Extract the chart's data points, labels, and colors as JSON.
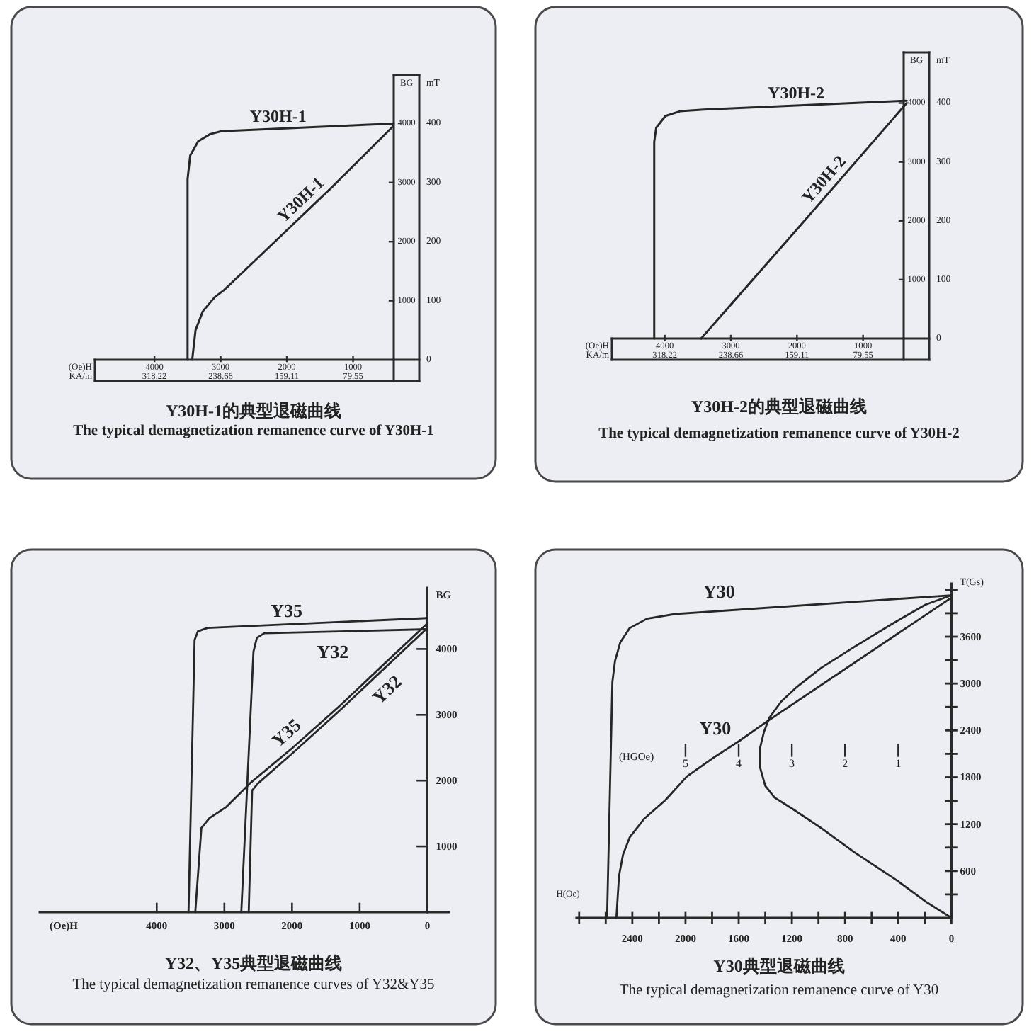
{
  "chart_data": [
    {
      "type": "line",
      "title": "Y30H-1的典型退磁曲线",
      "subtitle": "The typical demagnetization remanence curve of Y30H-1",
      "xlabel": "(Oe)H",
      "x2label": "KA/m",
      "ylabel": "BG",
      "y2label": "mT",
      "xlim": [
        4900,
        0
      ],
      "xticks": [
        4000,
        3000,
        2000,
        1000
      ],
      "x2lim": [
        389.8,
        0
      ],
      "x2ticks": [
        318.22,
        238.66,
        159.11,
        79.55
      ],
      "ylim": [
        0,
        4820
      ],
      "yticks": [
        1000,
        2000,
        3000,
        4000
      ],
      "y2lim": [
        0,
        482
      ],
      "y2ticks": [
        0,
        100,
        200,
        300,
        400
      ],
      "series": [
        {
          "name": "Y30H-1",
          "color": "#262626",
          "x": [
            3500,
            3500,
            3460,
            3340,
            3160,
            2990,
            390
          ],
          "values": [
            0,
            3060,
            3460,
            3700,
            3820,
            3870,
            4000
          ]
        },
        {
          "name": "Y30H-1",
          "color": "#262626",
          "x": [
            3430,
            3380,
            3270,
            3090,
            2950,
            2490,
            1340,
            390
          ],
          "values": [
            0,
            500,
            820,
            1060,
            1180,
            1670,
            2900,
            3960
          ]
        }
      ]
    },
    {
      "type": "line",
      "title": "Y30H-2的典型退磁曲线",
      "subtitle": "The typical demagnetization remanence curve of Y30H-2",
      "xlabel": "(Oe)H",
      "x2label": "KA/m",
      "ylabel": "BG",
      "y2label": "mT",
      "xlim": [
        4800,
        0
      ],
      "xticks": [
        4000,
        3000,
        2000,
        1000
      ],
      "x2lim": [
        381.9,
        0
      ],
      "x2ticks": [
        318.22,
        238.66,
        159.11,
        79.55
      ],
      "ylim": [
        0,
        4860
      ],
      "yticks": [
        1000,
        2000,
        3000,
        4000
      ],
      "y2lim": [
        0,
        486
      ],
      "y2ticks": [
        0,
        100,
        200,
        300,
        400
      ],
      "series": [
        {
          "name": "Y30H-2",
          "color": "#262626",
          "x": [
            4160,
            4160,
            4130,
            3990,
            3770,
            3410,
            340
          ],
          "values": [
            0,
            3340,
            3580,
            3780,
            3860,
            3890,
            4040
          ]
        },
        {
          "name": "Y30H-2",
          "color": "#262626",
          "x": [
            3450,
            1840,
            340
          ],
          "values": [
            0,
            2060,
            4000
          ]
        }
      ]
    },
    {
      "type": "line",
      "title": "Y32、Y35典型退磁曲线",
      "subtitle": "The typical demagnetization remanence curves of Y32&Y35",
      "xlabel": "(Oe)H",
      "ylabel": "BG",
      "xlim": [
        5730,
        -320
      ],
      "xticks": [
        4000,
        3000,
        2000,
        1000,
        0
      ],
      "ylim": [
        0,
        4930
      ],
      "yticks": [
        1000,
        2000,
        3000,
        4000
      ],
      "series": [
        {
          "name": "Y35",
          "color": "#262626",
          "x": [
            3530,
            3440,
            3390,
            3250,
            0
          ],
          "values": [
            0,
            4140,
            4270,
            4320,
            4470
          ]
        },
        {
          "name": "Y32",
          "color": "#262626",
          "x": [
            2750,
            2570,
            2520,
            2410,
            0
          ],
          "values": [
            0,
            3960,
            4170,
            4240,
            4300
          ]
        },
        {
          "name": "Y35",
          "color": "#262626",
          "x": [
            3430,
            3340,
            3220,
            2970,
            2620,
            1990,
            1290,
            590,
            0
          ],
          "values": [
            0,
            1280,
            1430,
            1600,
            1960,
            2500,
            3140,
            3820,
            4390
          ]
        },
        {
          "name": "Y32",
          "color": "#262626",
          "x": [
            2640,
            2590,
            2500,
            1990,
            1290,
            590,
            0
          ],
          "values": [
            0,
            1850,
            1960,
            2420,
            3070,
            3750,
            4320
          ]
        }
      ]
    },
    {
      "type": "line",
      "title": "Y30典型退磁曲线",
      "subtitle": "The typical demagnetization remanence curve of Y30",
      "xlabel": "H(Oe)",
      "ylabel": "T(Gs)",
      "x2label": "(HGOe)",
      "xlim": [
        2820,
        0
      ],
      "xticks": [
        {
          "value": 2800,
          "label": null
        },
        {
          "value": 2600,
          "label": null
        },
        2400,
        {
          "value": 2200,
          "label": null
        },
        2000,
        {
          "value": 1800,
          "label": null
        },
        1600,
        {
          "value": 1400,
          "label": null
        },
        1200,
        {
          "value": 1000,
          "label": null
        },
        800,
        {
          "value": 600,
          "label": null
        },
        400,
        {
          "value": 200,
          "label": null
        },
        0
      ],
      "x2lim": [
        7.05,
        0
      ],
      "x2ticks": [
        5,
        4,
        3,
        2,
        1
      ],
      "ylim": [
        0,
        4280
      ],
      "yticks": [
        {
          "value": 300,
          "label": null
        },
        600,
        {
          "value": 900,
          "label": null
        },
        1200,
        {
          "value": 1500,
          "label": null
        },
        1800,
        {
          "value": 2100,
          "label": null
        },
        2400,
        {
          "value": 2700,
          "label": null
        },
        3000,
        {
          "value": 3300,
          "label": null
        },
        3600,
        {
          "value": 3900,
          "label": null
        },
        {
          "value": 4200,
          "label": null
        }
      ],
      "series": [
        {
          "name": "Y30",
          "color": "#262626",
          "x": [
            2590,
            2550,
            2530,
            2490,
            2420,
            2290,
            2080,
            0
          ],
          "values": [
            0,
            3020,
            3290,
            3530,
            3710,
            3830,
            3890,
            4130
          ]
        },
        {
          "name": "Y30",
          "color": "#262626",
          "x": [
            2520,
            2500,
            2470,
            2420,
            2310,
            2150,
            1990,
            1790,
            1600,
            1400,
            0
          ],
          "values": [
            0,
            540,
            810,
            1030,
            1270,
            1510,
            1810,
            2050,
            2260,
            2500,
            4100
          ]
        },
        {
          "color": "#262626",
          "x": [
            0,
            195,
            410,
            730,
            980,
            1190,
            1330,
            1400,
            1440,
            1440,
            1410,
            1370,
            1280,
            1160,
            980,
            730,
            440,
            195,
            0
          ],
          "values": [
            0,
            210,
            480,
            840,
            1150,
            1390,
            1540,
            1690,
            1930,
            2170,
            2380,
            2560,
            2770,
            2960,
            3200,
            3470,
            3770,
            4010,
            4130
          ]
        }
      ]
    }
  ]
}
